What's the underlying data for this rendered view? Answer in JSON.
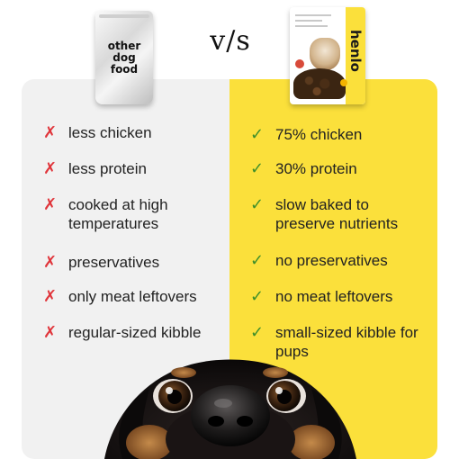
{
  "header": {
    "other_bag_label": "other\ndog\nfood",
    "vs_text": "v/s",
    "henlo_brand": "henlo"
  },
  "other_items": [
    {
      "text": "less chicken"
    },
    {
      "text": "less protein"
    },
    {
      "text": "cooked at high temperatures"
    },
    {
      "text": "preservatives"
    },
    {
      "text": "only meat leftovers"
    },
    {
      "text": "regular-sized kibble"
    }
  ],
  "henlo_items": [
    {
      "text": "75% chicken"
    },
    {
      "text": "30% protein"
    },
    {
      "text": "slow baked to preserve nutrients"
    },
    {
      "text": "no preservatives"
    },
    {
      "text": "no meat leftovers"
    },
    {
      "text": "small-sized kibble for pups"
    }
  ],
  "icons": {
    "negative": "cross-icon",
    "positive": "check-icon"
  },
  "colors": {
    "left_panel": "#f1f1f1",
    "right_panel": "#fbe03b",
    "cross": "#e0343a",
    "check": "#3f8f2a"
  }
}
